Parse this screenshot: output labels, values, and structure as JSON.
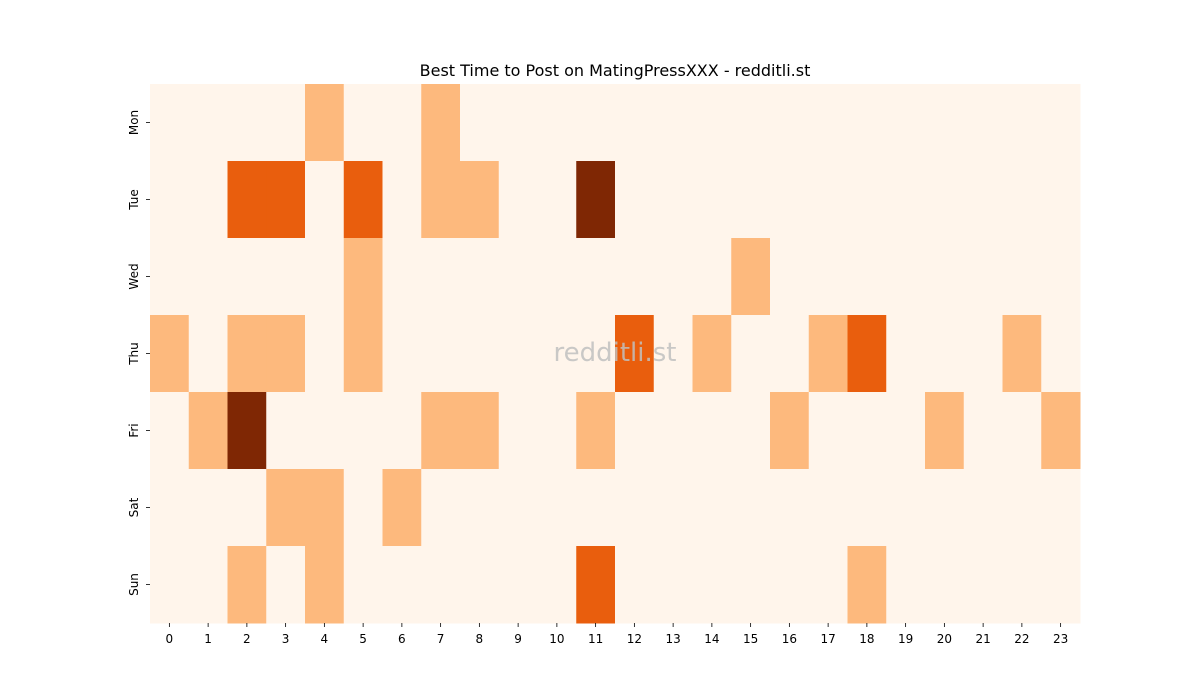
{
  "chart_data": {
    "type": "heatmap",
    "title": "Best Time to Post on MatingPressXXX - redditli.st",
    "watermark": "redditli.st",
    "xlabel": "",
    "ylabel": "",
    "x": [
      "0",
      "1",
      "2",
      "3",
      "4",
      "5",
      "6",
      "7",
      "8",
      "9",
      "10",
      "11",
      "12",
      "13",
      "14",
      "15",
      "16",
      "17",
      "18",
      "19",
      "20",
      "21",
      "22",
      "23"
    ],
    "y": [
      "Mon",
      "Tue",
      "Wed",
      "Thu",
      "Fri",
      "Sat",
      "Sun"
    ],
    "values": [
      [
        0,
        0,
        0,
        0,
        1,
        0,
        0,
        1,
        0,
        0,
        0,
        0,
        0,
        0,
        0,
        0,
        0,
        0,
        0,
        0,
        0,
        0,
        0,
        0
      ],
      [
        0,
        0,
        2,
        2,
        0,
        2,
        0,
        1,
        1,
        0,
        0,
        3,
        0,
        0,
        0,
        0,
        0,
        0,
        0,
        0,
        0,
        0,
        0,
        0
      ],
      [
        0,
        0,
        0,
        0,
        0,
        1,
        0,
        0,
        0,
        0,
        0,
        0,
        0,
        0,
        0,
        1,
        0,
        0,
        0,
        0,
        0,
        0,
        0,
        0
      ],
      [
        1,
        0,
        1,
        1,
        0,
        1,
        0,
        0,
        0,
        0,
        0,
        0,
        2,
        0,
        1,
        0,
        0,
        1,
        2,
        0,
        0,
        0,
        1,
        0
      ],
      [
        0,
        1,
        3,
        0,
        0,
        0,
        0,
        1,
        1,
        0,
        0,
        1,
        0,
        0,
        0,
        0,
        1,
        0,
        0,
        0,
        1,
        0,
        0,
        1
      ],
      [
        0,
        0,
        0,
        1,
        1,
        0,
        1,
        0,
        0,
        0,
        0,
        0,
        0,
        0,
        0,
        0,
        0,
        0,
        0,
        0,
        0,
        0,
        0,
        0
      ],
      [
        0,
        0,
        1,
        0,
        1,
        0,
        0,
        0,
        0,
        0,
        0,
        2,
        0,
        0,
        0,
        0,
        0,
        0,
        1,
        0,
        0,
        0,
        0,
        0
      ]
    ],
    "value_range": [
      0,
      3
    ],
    "colormap": [
      "#fff5eb",
      "#fdb97d",
      "#e95e0d",
      "#7f2704"
    ],
    "legend": "none",
    "grid": false
  }
}
